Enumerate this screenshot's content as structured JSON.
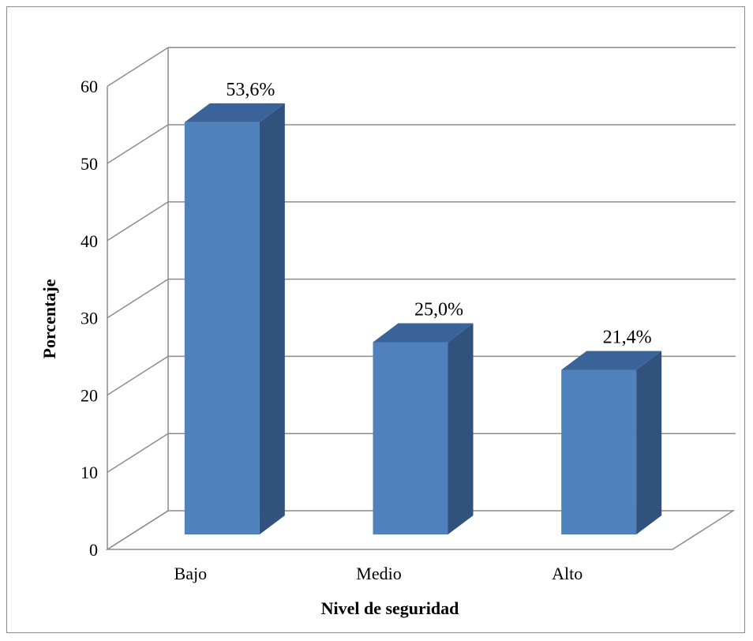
{
  "chart_data": {
    "type": "bar",
    "subtype": "3d-column",
    "categories": [
      "Bajo",
      "Medio",
      "Alto"
    ],
    "values": [
      53.6,
      25.0,
      21.4
    ],
    "data_labels": [
      "53,6%",
      "25,0%",
      "21,4%"
    ],
    "yticks": [
      "0",
      "10",
      "20",
      "30",
      "40",
      "50",
      "60"
    ],
    "xlabel": "Nivel de seguridad",
    "ylabel": "Porcentaje",
    "ylim": [
      0,
      60
    ],
    "grid": true,
    "legend": "none",
    "colors": {
      "bar_front": "#4f81bd",
      "bar_side": "#30527c",
      "bar_top": "#3a6399",
      "grid": "#8c8c8c"
    }
  }
}
